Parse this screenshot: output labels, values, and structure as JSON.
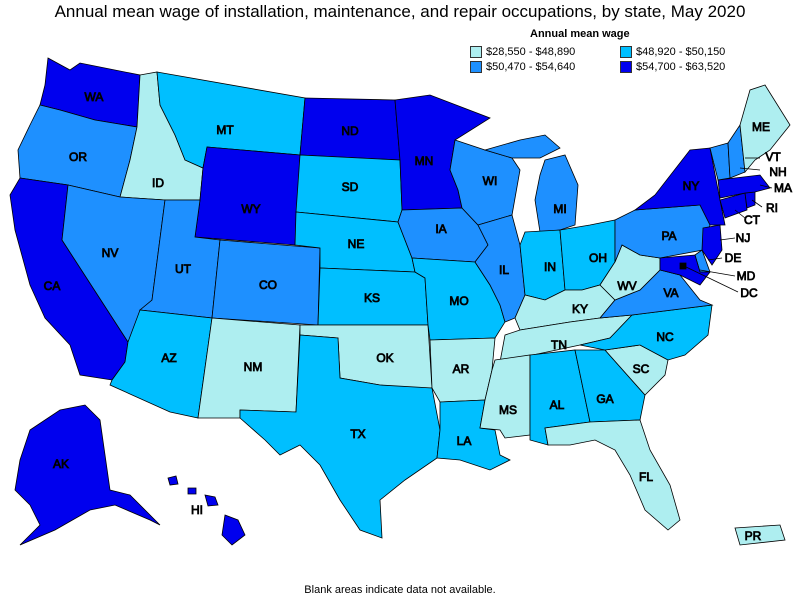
{
  "title": "Annual mean wage of installation, maintenance, and repair occupations, by state, May 2020",
  "legend": {
    "title": "Annual mean wage",
    "items": [
      {
        "label": "$28,550 - $48,890",
        "color": "#aeeef0"
      },
      {
        "label": "$50,470 - $54,640",
        "color": "#1e90ff"
      },
      {
        "label": "$48,920 - $50,150",
        "color": "#00bfff"
      },
      {
        "label": "$54,700 - $63,520",
        "color": "#0000ee"
      }
    ]
  },
  "colors": {
    "low": "#aeeef0",
    "mid_low": "#00bfff",
    "mid_high": "#1e90ff",
    "high": "#0000ee"
  },
  "states": {
    "WA": "WA",
    "OR": "OR",
    "CA": "CA",
    "ID": "ID",
    "NV": "NV",
    "MT": "MT",
    "WY": "WY",
    "UT": "UT",
    "AZ": "AZ",
    "CO": "CO",
    "NM": "NM",
    "ND": "ND",
    "SD": "SD",
    "NE": "NE",
    "KS": "KS",
    "OK": "OK",
    "TX": "TX",
    "MN": "MN",
    "IA": "IA",
    "MO": "MO",
    "AR": "AR",
    "LA": "LA",
    "WI": "WI",
    "IL": "IL",
    "MI": "MI",
    "IN": "IN",
    "OH": "OH",
    "KY": "KY",
    "TN": "TN",
    "MS": "MS",
    "AL": "AL",
    "GA": "GA",
    "FL": "FL",
    "SC": "SC",
    "NC": "NC",
    "VA": "VA",
    "WV": "WV",
    "PA": "PA",
    "NY": "NY",
    "ME": "ME",
    "VT": "VT",
    "NH": "NH",
    "MA": "MA",
    "RI": "RI",
    "CT": "CT",
    "NJ": "NJ",
    "DE": "DE",
    "MD": "MD",
    "DC": "DC",
    "AK": "AK",
    "HI": "HI",
    "PR": "PR"
  },
  "footnote": "Blank areas indicate data not available."
}
